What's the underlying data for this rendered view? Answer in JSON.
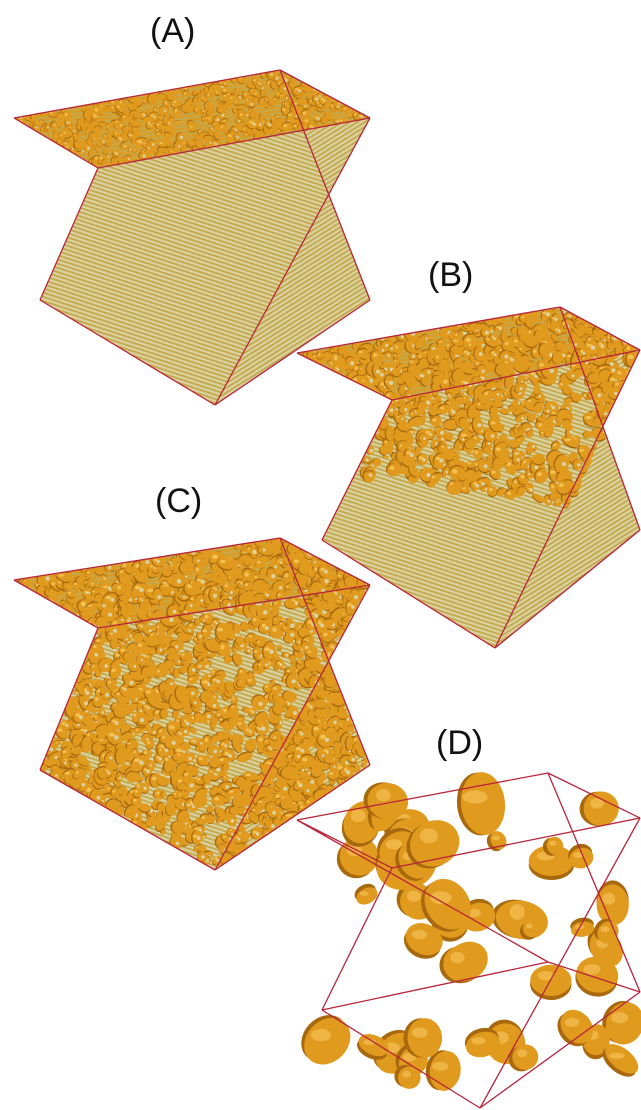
{
  "figure": {
    "panels": [
      {
        "id": "A",
        "label": "(A)",
        "state": "initial dense alloy lattice"
      },
      {
        "id": "B",
        "label": "(B)",
        "state": "dealloying front partway through depth"
      },
      {
        "id": "C",
        "label": "(C)",
        "state": "fully dealloyed fine bicontinuous structure"
      },
      {
        "id": "D",
        "label": "(D)",
        "state": "coarsened ligament structure"
      }
    ],
    "colors": {
      "ligament": "#e09a1e",
      "ligament_shadow": "#a8690e",
      "ligament_highlight": "#f4c155",
      "alloy_matrix": "#d9d2a2",
      "alloy_stripe": "#c4a84a",
      "box_edge": "#b8243a"
    }
  }
}
